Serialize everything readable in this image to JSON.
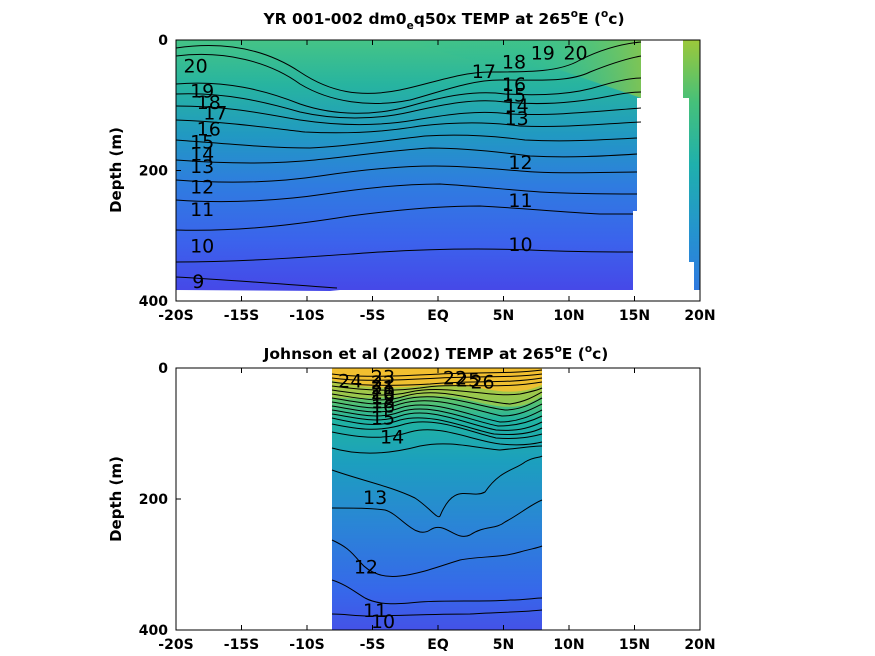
{
  "chart_data": [
    {
      "type": "contour",
      "title": "YR 001-002 dm0_eq50x TEMP at 265°E (°c)",
      "title_parts": {
        "pre": "YR 001-002 dm0",
        "sub": "e",
        "mid": "q50x TEMP at 265",
        "deg": "o",
        "post1": "E (",
        "deg2": "o",
        "post2": "c)"
      },
      "ylabel": "Depth (m)",
      "xlabel": "",
      "xlim": [
        -20,
        20
      ],
      "ylim": [
        0,
        400
      ],
      "y_reversed": true,
      "x_ticks": [
        -20,
        -15,
        -10,
        -5,
        0,
        5,
        10,
        15,
        20
      ],
      "x_tick_labels": [
        "-20S",
        "-15S",
        "-10S",
        "-5S",
        "EQ",
        "5N",
        "10N",
        "15N",
        "20N"
      ],
      "y_ticks": [
        0,
        200,
        400
      ],
      "y_tick_labels": [
        "0",
        "200",
        "400"
      ],
      "data_extent": {
        "x": [
          -20,
          15
        ],
        "depth": [
          0,
          395
        ]
      },
      "contour_levels": [
        9,
        10,
        11,
        12,
        13,
        14,
        15,
        16,
        17,
        18,
        19,
        20
      ],
      "contour_labels": [
        {
          "text": "20",
          "x": -18.5,
          "y": 50
        },
        {
          "text": "19",
          "x": -18,
          "y": 88
        },
        {
          "text": "18",
          "x": -17.5,
          "y": 106
        },
        {
          "text": "17",
          "x": -17,
          "y": 122
        },
        {
          "text": "16",
          "x": -17.5,
          "y": 146
        },
        {
          "text": "15",
          "x": -18,
          "y": 166
        },
        {
          "text": "14",
          "x": -18,
          "y": 185
        },
        {
          "text": "13",
          "x": -18,
          "y": 204
        },
        {
          "text": "12",
          "x": -18,
          "y": 235
        },
        {
          "text": "11",
          "x": -18,
          "y": 270
        },
        {
          "text": "10",
          "x": -18,
          "y": 326
        },
        {
          "text": "9",
          "x": -18.3,
          "y": 380
        },
        {
          "text": "18",
          "x": 5.8,
          "y": 44
        },
        {
          "text": "19",
          "x": 8,
          "y": 30
        },
        {
          "text": "20",
          "x": 10.5,
          "y": 30
        },
        {
          "text": "17",
          "x": 3.5,
          "y": 58
        },
        {
          "text": "16",
          "x": 5.8,
          "y": 78
        },
        {
          "text": "15",
          "x": 5.8,
          "y": 94
        },
        {
          "text": "14",
          "x": 6,
          "y": 110
        },
        {
          "text": "13",
          "x": 6,
          "y": 130
        },
        {
          "text": "12",
          "x": 6.3,
          "y": 198
        },
        {
          "text": "11",
          "x": 6.3,
          "y": 256
        },
        {
          "text": "10",
          "x": 6.3,
          "y": 323
        }
      ]
    },
    {
      "type": "contour",
      "title": "Johnson et al (2002) TEMP at 265°E (°c)",
      "title_parts": {
        "pre": "Johnson et al (2002) TEMP at 265",
        "deg": "o",
        "post1": "E (",
        "deg2": "o",
        "post2": "c)"
      },
      "ylabel": "Depth (m)",
      "xlabel": "",
      "xlim": [
        -20,
        20
      ],
      "ylim": [
        0,
        400
      ],
      "y_reversed": true,
      "x_ticks": [
        -20,
        -15,
        -10,
        -5,
        0,
        5,
        10,
        15,
        20
      ],
      "x_tick_labels": [
        "-20S",
        "-15S",
        "-10S",
        "-5S",
        "EQ",
        "5N",
        "10N",
        "15N",
        "20N"
      ],
      "y_ticks": [
        0,
        200,
        400
      ],
      "y_tick_labels": [
        "0",
        "200",
        "400"
      ],
      "data_extent": {
        "x": [
          -8,
          8
        ],
        "depth": [
          0,
          400
        ]
      },
      "contour_levels": [
        10,
        11,
        12,
        13,
        14,
        15,
        16,
        17,
        18,
        19,
        20,
        21,
        22,
        23,
        24,
        25,
        26
      ],
      "contour_labels": [
        {
          "text": "24",
          "x": -6.7,
          "y": 30
        },
        {
          "text": "23",
          "x": -4.2,
          "y": 24
        },
        {
          "text": "22",
          "x": -4.2,
          "y": 32
        },
        {
          "text": "21",
          "x": -4.2,
          "y": 40
        },
        {
          "text": "20",
          "x": -4.2,
          "y": 47
        },
        {
          "text": "19",
          "x": -4.2,
          "y": 54
        },
        {
          "text": "18",
          "x": -4.2,
          "y": 61
        },
        {
          "text": "16",
          "x": -4.2,
          "y": 68
        },
        {
          "text": "15",
          "x": -4.2,
          "y": 86
        },
        {
          "text": "14",
          "x": -3.5,
          "y": 115
        },
        {
          "text": "22",
          "x": 1.3,
          "y": 25
        },
        {
          "text": "25",
          "x": 2.3,
          "y": 28
        },
        {
          "text": "26",
          "x": 3.4,
          "y": 31
        },
        {
          "text": "13",
          "x": -4.8,
          "y": 208
        },
        {
          "text": "12",
          "x": -5.5,
          "y": 314
        },
        {
          "text": "11",
          "x": -4.8,
          "y": 380
        },
        {
          "text": "10",
          "x": -4.2,
          "y": 430
        }
      ]
    }
  ]
}
